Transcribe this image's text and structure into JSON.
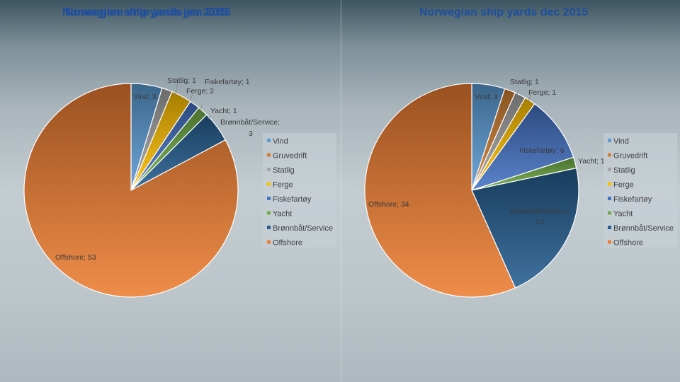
{
  "chart_data": [
    {
      "type": "pie",
      "title": "Norwegian ship yards jan 2015",
      "title_overlap": "Norwegian ship yards jan 2016",
      "categories": [
        "Vind",
        "Gruvedrift",
        "Statlig",
        "Ferge",
        "Fiskefartøy",
        "Yacht",
        "Brønnbåt/Service",
        "Offshore"
      ],
      "values": [
        3,
        0,
        1,
        2,
        1,
        1,
        3,
        53
      ],
      "data_labels": [
        {
          "category": "Vind",
          "text": "Vind; 3"
        },
        {
          "category": "Statlig",
          "text": "Statlig; 1"
        },
        {
          "category": "Fiskefartøy",
          "text": "Fiskefartøy; 1"
        },
        {
          "category": "Ferge",
          "text": "Ferge; 2"
        },
        {
          "category": "Yacht",
          "text": "Yacht; 1"
        },
        {
          "category": "Brønnbåt/Service",
          "text": "Brønnbåt/Service;"
        },
        {
          "category": "Brønnbåt/Service",
          "text": "3"
        },
        {
          "category": "Offshore",
          "text": "Offshore; 53"
        }
      ],
      "legend": "right"
    },
    {
      "type": "pie",
      "title": "Norwegian ship yards dec 2015",
      "categories": [
        "Vind",
        "Gruvedrift",
        "Statlig",
        "Ferge",
        "Fiskefartøy",
        "Yacht",
        "Brønnbåt/Service",
        "Offshore"
      ],
      "values": [
        3,
        1,
        1,
        1,
        6,
        1,
        13,
        34
      ],
      "data_labels": [
        {
          "category": "Vind",
          "text": "Vind; 3"
        },
        {
          "category": "Statlig",
          "text": "Statlig; 1"
        },
        {
          "category": "Ferge",
          "text": "Ferge; 1"
        },
        {
          "category": "Fiskefartøy",
          "text": "Fiskefartøy; 6"
        },
        {
          "category": "Yacht",
          "text": "Yacht; 1"
        },
        {
          "category": "Brønnbåt/Service",
          "text": "Brønnbåt/Service;"
        },
        {
          "category": "Brønnbåt/Service",
          "text": "13"
        },
        {
          "category": "Offshore",
          "text": "Offshore; 34"
        }
      ],
      "legend": "right"
    }
  ],
  "colors": {
    "Vind": "#5b9bd5",
    "Gruvedrift": "#d07f33",
    "Statlig": "#a5a5a5",
    "Ferge": "#ffc000",
    "Fiskefartøy": "#4472c4",
    "Yacht": "#70ad47",
    "Brønnbåt/Service": "#255e91",
    "Offshore": "#ed7d31"
  }
}
